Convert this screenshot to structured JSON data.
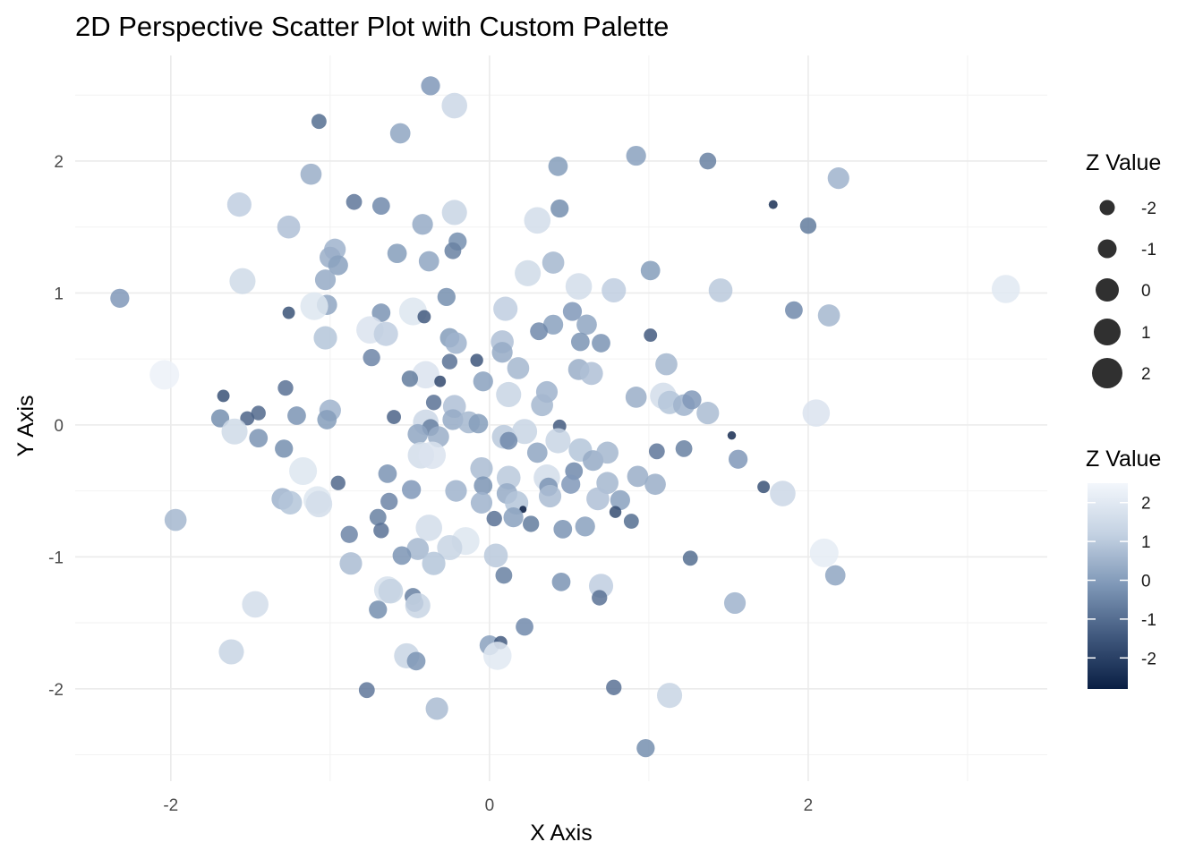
{
  "chart_data": {
    "type": "scatter",
    "title": "2D Perspective Scatter Plot with Custom Palette",
    "xlabel": "X Axis",
    "ylabel": "Y Axis",
    "xlim": [
      -2.6,
      3.5
    ],
    "ylim": [
      -2.7,
      2.8
    ],
    "x_ticks": [
      -2,
      0,
      2
    ],
    "y_ticks": [
      -2,
      -1,
      0,
      1,
      2
    ],
    "x_tick_labels": [
      "-2",
      "0",
      "2"
    ],
    "y_tick_labels": [
      "-2",
      "-1",
      "0",
      "1",
      "2"
    ],
    "grid": true,
    "size_legend": {
      "title": "Z Value",
      "breaks": [
        -2,
        -1,
        0,
        1,
        2
      ],
      "labels": [
        "-2",
        "-1",
        "0",
        "1",
        "2"
      ]
    },
    "color_legend": {
      "title": "Z Value",
      "breaks": [
        2,
        1,
        0,
        -1,
        -2
      ],
      "labels": [
        "2",
        "1",
        "0",
        "-1",
        "-2"
      ],
      "z_range": [
        -2.8,
        2.5
      ],
      "low_color": "#0a1f44",
      "mid_color": "#7d96b6",
      "high_color": "#f3f7fc"
    },
    "points": [
      {
        "x": -0.37,
        "y": 2.57,
        "z": -0.1
      },
      {
        "x": -0.22,
        "y": 2.42,
        "z": 1.4
      },
      {
        "x": -1.07,
        "y": 2.3,
        "z": -1.0
      },
      {
        "x": -0.56,
        "y": 2.21,
        "z": 0.2
      },
      {
        "x": -1.12,
        "y": 1.9,
        "z": 0.4
      },
      {
        "x": 0.43,
        "y": 1.96,
        "z": 0.0
      },
      {
        "x": 0.92,
        "y": 2.04,
        "z": 0.1
      },
      {
        "x": 1.37,
        "y": 2.0,
        "z": -0.6
      },
      {
        "x": 2.19,
        "y": 1.87,
        "z": 0.5
      },
      {
        "x": -1.57,
        "y": 1.67,
        "z": 1.1
      },
      {
        "x": -0.85,
        "y": 1.69,
        "z": -0.8
      },
      {
        "x": -0.68,
        "y": 1.66,
        "z": -0.4
      },
      {
        "x": -0.22,
        "y": 1.61,
        "z": 1.3
      },
      {
        "x": 0.44,
        "y": 1.64,
        "z": -0.3
      },
      {
        "x": 0.3,
        "y": 1.55,
        "z": 1.6
      },
      {
        "x": 1.78,
        "y": 1.67,
        "z": -2.4
      },
      {
        "x": 2.0,
        "y": 1.51,
        "z": -0.7
      },
      {
        "x": -1.26,
        "y": 1.5,
        "z": 0.8
      },
      {
        "x": -0.42,
        "y": 1.52,
        "z": 0.3
      },
      {
        "x": -0.2,
        "y": 1.39,
        "z": -0.3
      },
      {
        "x": -0.97,
        "y": 1.33,
        "z": 0.5
      },
      {
        "x": -0.58,
        "y": 1.3,
        "z": 0.0
      },
      {
        "x": -0.38,
        "y": 1.24,
        "z": 0.2
      },
      {
        "x": -0.23,
        "y": 1.32,
        "z": -0.6
      },
      {
        "x": -1.0,
        "y": 1.27,
        "z": 0.4
      },
      {
        "x": -0.95,
        "y": 1.21,
        "z": 0.1
      },
      {
        "x": -1.03,
        "y": 1.1,
        "z": 0.3
      },
      {
        "x": -1.55,
        "y": 1.09,
        "z": 1.5
      },
      {
        "x": -2.32,
        "y": 0.96,
        "z": -0.1
      },
      {
        "x": 0.4,
        "y": 1.23,
        "z": 0.6
      },
      {
        "x": 0.24,
        "y": 1.15,
        "z": 1.5
      },
      {
        "x": 1.01,
        "y": 1.17,
        "z": 0.0
      },
      {
        "x": 0.56,
        "y": 1.05,
        "z": 1.6
      },
      {
        "x": 0.78,
        "y": 1.02,
        "z": 1.1
      },
      {
        "x": 1.45,
        "y": 1.02,
        "z": 1.0
      },
      {
        "x": 3.24,
        "y": 1.03,
        "z": 2.0
      },
      {
        "x": -0.27,
        "y": 0.97,
        "z": -0.3
      },
      {
        "x": -1.02,
        "y": 0.91,
        "z": 0.2
      },
      {
        "x": -1.26,
        "y": 0.85,
        "z": -1.6
      },
      {
        "x": -1.1,
        "y": 0.9,
        "z": 1.9
      },
      {
        "x": -0.68,
        "y": 0.85,
        "z": -0.2
      },
      {
        "x": -0.48,
        "y": 0.86,
        "z": 1.9
      },
      {
        "x": -0.41,
        "y": 0.82,
        "z": -1.4
      },
      {
        "x": 0.1,
        "y": 0.88,
        "z": 1.1
      },
      {
        "x": 0.52,
        "y": 0.86,
        "z": -0.1
      },
      {
        "x": 0.4,
        "y": 0.76,
        "z": 0.1
      },
      {
        "x": 0.61,
        "y": 0.76,
        "z": 0.2
      },
      {
        "x": 1.91,
        "y": 0.87,
        "z": -0.4
      },
      {
        "x": 2.13,
        "y": 0.83,
        "z": 0.6
      },
      {
        "x": -0.75,
        "y": 0.72,
        "z": 1.8
      },
      {
        "x": -0.65,
        "y": 0.69,
        "z": 1.1
      },
      {
        "x": -1.03,
        "y": 0.66,
        "z": 0.9
      },
      {
        "x": -0.25,
        "y": 0.66,
        "z": 0.0
      },
      {
        "x": -0.21,
        "y": 0.62,
        "z": 0.5
      },
      {
        "x": 0.08,
        "y": 0.63,
        "z": 0.8
      },
      {
        "x": 0.31,
        "y": 0.71,
        "z": -0.4
      },
      {
        "x": 0.57,
        "y": 0.63,
        "z": -0.2
      },
      {
        "x": 0.7,
        "y": 0.62,
        "z": -0.2
      },
      {
        "x": 1.01,
        "y": 0.68,
        "z": -1.4
      },
      {
        "x": 0.08,
        "y": 0.55,
        "z": 0.3
      },
      {
        "x": -0.74,
        "y": 0.51,
        "z": -0.5
      },
      {
        "x": -0.4,
        "y": 0.38,
        "z": 1.8
      },
      {
        "x": -0.25,
        "y": 0.48,
        "z": -0.9
      },
      {
        "x": -0.08,
        "y": 0.49,
        "z": -1.5
      },
      {
        "x": 0.18,
        "y": 0.43,
        "z": 0.6
      },
      {
        "x": 0.56,
        "y": 0.42,
        "z": 0.4
      },
      {
        "x": 0.64,
        "y": 0.39,
        "z": 0.8
      },
      {
        "x": 1.11,
        "y": 0.46,
        "z": 0.6
      },
      {
        "x": -0.5,
        "y": 0.35,
        "z": -0.7
      },
      {
        "x": -0.31,
        "y": 0.33,
        "z": -1.8
      },
      {
        "x": -0.04,
        "y": 0.33,
        "z": 0.1
      },
      {
        "x": -1.28,
        "y": 0.28,
        "z": -0.9
      },
      {
        "x": -2.04,
        "y": 0.38,
        "z": 2.3
      },
      {
        "x": -1.67,
        "y": 0.22,
        "z": -1.6
      },
      {
        "x": -0.35,
        "y": 0.17,
        "z": -0.9
      },
      {
        "x": -0.22,
        "y": 0.14,
        "z": 0.8
      },
      {
        "x": 0.12,
        "y": 0.23,
        "z": 1.3
      },
      {
        "x": 0.36,
        "y": 0.25,
        "z": 0.5
      },
      {
        "x": 0.33,
        "y": 0.15,
        "z": 0.6
      },
      {
        "x": 0.92,
        "y": 0.21,
        "z": 0.4
      },
      {
        "x": 1.09,
        "y": 0.22,
        "z": 1.6
      },
      {
        "x": 1.13,
        "y": 0.17,
        "z": 0.9
      },
      {
        "x": 1.22,
        "y": 0.15,
        "z": 0.5
      },
      {
        "x": 1.27,
        "y": 0.19,
        "z": -0.1
      },
      {
        "x": 1.37,
        "y": 0.09,
        "z": 0.7
      },
      {
        "x": 2.05,
        "y": 0.09,
        "z": 1.8
      },
      {
        "x": -1.0,
        "y": 0.11,
        "z": 0.5
      },
      {
        "x": -1.02,
        "y": 0.04,
        "z": 0.0
      },
      {
        "x": -1.21,
        "y": 0.07,
        "z": -0.2
      },
      {
        "x": -1.45,
        "y": 0.09,
        "z": -1.1
      },
      {
        "x": -1.52,
        "y": 0.05,
        "z": -1.2
      },
      {
        "x": -1.69,
        "y": 0.05,
        "z": -0.3
      },
      {
        "x": -0.6,
        "y": 0.06,
        "z": -1.2
      },
      {
        "x": -0.4,
        "y": 0.02,
        "z": 1.4
      },
      {
        "x": -0.23,
        "y": 0.04,
        "z": 0.3
      },
      {
        "x": -0.13,
        "y": 0.02,
        "z": 0.6
      },
      {
        "x": -0.07,
        "y": 0.01,
        "z": 0.0
      },
      {
        "x": 0.44,
        "y": -0.01,
        "z": -1.4
      },
      {
        "x": -0.37,
        "y": -0.02,
        "z": -0.6
      },
      {
        "x": -1.6,
        "y": -0.05,
        "z": 1.5
      },
      {
        "x": -1.45,
        "y": -0.1,
        "z": -0.2
      },
      {
        "x": -0.45,
        "y": -0.07,
        "z": 0.2
      },
      {
        "x": -0.32,
        "y": -0.09,
        "z": 0.4
      },
      {
        "x": 0.09,
        "y": -0.09,
        "z": 1.0
      },
      {
        "x": 0.22,
        "y": -0.05,
        "z": 1.3
      },
      {
        "x": 0.43,
        "y": -0.12,
        "z": 1.3
      },
      {
        "x": 0.12,
        "y": -0.12,
        "z": -0.4
      },
      {
        "x": 0.57,
        "y": -0.19,
        "z": 0.9
      },
      {
        "x": -1.29,
        "y": -0.18,
        "z": -0.3
      },
      {
        "x": -0.43,
        "y": -0.23,
        "z": 1.6
      },
      {
        "x": -0.36,
        "y": -0.23,
        "z": 1.8
      },
      {
        "x": 0.3,
        "y": -0.21,
        "z": 0.2
      },
      {
        "x": 0.65,
        "y": -0.27,
        "z": 0.3
      },
      {
        "x": 0.74,
        "y": -0.21,
        "z": 0.6
      },
      {
        "x": 1.05,
        "y": -0.2,
        "z": -0.8
      },
      {
        "x": 1.22,
        "y": -0.18,
        "z": -0.6
      },
      {
        "x": 1.52,
        "y": -0.08,
        "z": -2.5
      },
      {
        "x": 1.56,
        "y": -0.26,
        "z": -0.1
      },
      {
        "x": -1.17,
        "y": -0.35,
        "z": 1.9
      },
      {
        "x": -0.64,
        "y": -0.37,
        "z": -0.2
      },
      {
        "x": -0.05,
        "y": -0.33,
        "z": 0.7
      },
      {
        "x": 0.12,
        "y": -0.4,
        "z": 1.0
      },
      {
        "x": 0.36,
        "y": -0.4,
        "z": 1.6
      },
      {
        "x": 0.53,
        "y": -0.35,
        "z": -0.4
      },
      {
        "x": 0.74,
        "y": -0.44,
        "z": 0.6
      },
      {
        "x": 0.93,
        "y": -0.39,
        "z": 0.4
      },
      {
        "x": 1.04,
        "y": -0.45,
        "z": 0.4
      },
      {
        "x": -0.95,
        "y": -0.44,
        "z": -1.1
      },
      {
        "x": -0.49,
        "y": -0.49,
        "z": -0.1
      },
      {
        "x": -0.21,
        "y": -0.5,
        "z": 0.5
      },
      {
        "x": -0.04,
        "y": -0.46,
        "z": -0.2
      },
      {
        "x": 0.11,
        "y": -0.52,
        "z": 0.3
      },
      {
        "x": 0.37,
        "y": -0.47,
        "z": -0.2
      },
      {
        "x": 0.51,
        "y": -0.45,
        "z": -0.1
      },
      {
        "x": 1.84,
        "y": -0.52,
        "z": 1.4
      },
      {
        "x": -1.3,
        "y": -0.56,
        "z": 0.5
      },
      {
        "x": -1.25,
        "y": -0.59,
        "z": 0.9
      },
      {
        "x": -1.08,
        "y": -0.57,
        "z": 1.9
      },
      {
        "x": -1.07,
        "y": -0.6,
        "z": 1.6
      },
      {
        "x": -0.63,
        "y": -0.58,
        "z": -0.5
      },
      {
        "x": -0.05,
        "y": -0.59,
        "z": 0.5
      },
      {
        "x": 0.17,
        "y": -0.59,
        "z": 0.9
      },
      {
        "x": 0.38,
        "y": -0.54,
        "z": 0.7
      },
      {
        "x": 0.68,
        "y": -0.56,
        "z": 0.8
      },
      {
        "x": 0.82,
        "y": -0.57,
        "z": 0.1
      },
      {
        "x": 1.72,
        "y": -0.47,
        "z": -1.6
      },
      {
        "x": -0.7,
        "y": -0.7,
        "z": -0.6
      },
      {
        "x": -0.68,
        "y": -0.8,
        "z": -0.9
      },
      {
        "x": 0.03,
        "y": -0.71,
        "z": -0.9
      },
      {
        "x": 0.21,
        "y": -0.64,
        "z": -2.8
      },
      {
        "x": 0.15,
        "y": -0.7,
        "z": 0.1
      },
      {
        "x": 0.26,
        "y": -0.75,
        "z": -0.7
      },
      {
        "x": 0.6,
        "y": -0.77,
        "z": 0.1
      },
      {
        "x": 0.79,
        "y": -0.66,
        "z": -1.7
      },
      {
        "x": 0.89,
        "y": -0.73,
        "z": -1.0
      },
      {
        "x": -1.97,
        "y": -0.72,
        "z": 0.6
      },
      {
        "x": -0.88,
        "y": -0.83,
        "z": -0.5
      },
      {
        "x": -0.38,
        "y": -0.78,
        "z": 1.6
      },
      {
        "x": 0.46,
        "y": -0.79,
        "z": -0.2
      },
      {
        "x": -0.15,
        "y": -0.88,
        "z": 1.9
      },
      {
        "x": -0.25,
        "y": -0.93,
        "z": 1.3
      },
      {
        "x": -0.45,
        "y": -0.94,
        "z": 0.6
      },
      {
        "x": -0.55,
        "y": -0.99,
        "z": -0.2
      },
      {
        "x": 0.04,
        "y": -0.99,
        "z": 1.0
      },
      {
        "x": 2.1,
        "y": -0.97,
        "z": 2.1
      },
      {
        "x": -0.87,
        "y": -1.05,
        "z": 0.7
      },
      {
        "x": -0.35,
        "y": -1.05,
        "z": 0.9
      },
      {
        "x": 1.26,
        "y": -1.01,
        "z": -1.0
      },
      {
        "x": 0.09,
        "y": -1.14,
        "z": -0.6
      },
      {
        "x": 0.45,
        "y": -1.19,
        "z": -0.2
      },
      {
        "x": 2.17,
        "y": -1.14,
        "z": 0.2
      },
      {
        "x": -0.64,
        "y": -1.25,
        "z": 1.7
      },
      {
        "x": -0.62,
        "y": -1.26,
        "z": 1.2
      },
      {
        "x": -0.48,
        "y": -1.3,
        "z": -0.6
      },
      {
        "x": 0.7,
        "y": -1.22,
        "z": 1.1
      },
      {
        "x": 0.69,
        "y": -1.31,
        "z": -0.9
      },
      {
        "x": -1.47,
        "y": -1.36,
        "z": 1.6
      },
      {
        "x": -0.47,
        "y": -1.35,
        "z": -0.4
      },
      {
        "x": -0.45,
        "y": -1.37,
        "z": 1.3
      },
      {
        "x": 1.54,
        "y": -1.35,
        "z": 0.5
      },
      {
        "x": -0.7,
        "y": -1.4,
        "z": -0.3
      },
      {
        "x": 0.22,
        "y": -1.53,
        "z": -0.4
      },
      {
        "x": -1.62,
        "y": -1.72,
        "z": 1.3
      },
      {
        "x": -0.52,
        "y": -1.75,
        "z": 1.3
      },
      {
        "x": -0.46,
        "y": -1.79,
        "z": -0.2
      },
      {
        "x": 0.0,
        "y": -1.67,
        "z": 0.1
      },
      {
        "x": 0.07,
        "y": -1.65,
        "z": -1.4
      },
      {
        "x": 0.05,
        "y": -1.75,
        "z": 2.0
      },
      {
        "x": -0.77,
        "y": -2.01,
        "z": -0.8
      },
      {
        "x": 0.78,
        "y": -1.99,
        "z": -0.9
      },
      {
        "x": 1.13,
        "y": -2.05,
        "z": 1.3
      },
      {
        "x": -0.33,
        "y": -2.15,
        "z": 0.7
      },
      {
        "x": 0.98,
        "y": -2.45,
        "z": -0.3
      }
    ]
  }
}
